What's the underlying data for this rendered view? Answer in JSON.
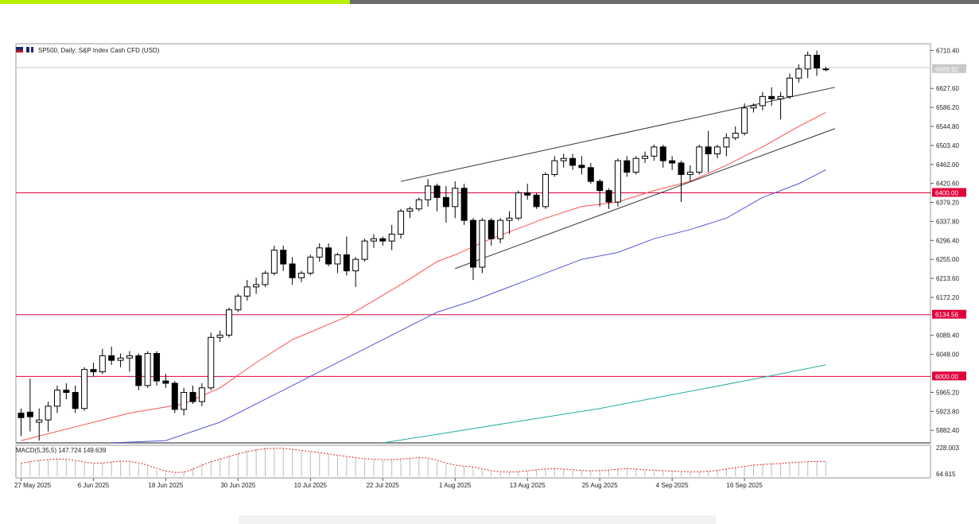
{
  "header": {
    "title": "SP500, Daily:  S&P Index Cash CFD (USD)"
  },
  "macd": {
    "label": "MACD(5,35,5) 147.724 149.639",
    "top_value": "228.003",
    "bottom_value": "64.615"
  },
  "colors": {
    "up_candle_fill": "#ffffff",
    "down_candle_fill": "#000000",
    "ma_fast": "#ff5050",
    "ma_mid": "#5555dd",
    "ma_slow": "#20b0a0",
    "hline": "#e0003a",
    "macd_signal": "#e02020"
  },
  "chart_data": {
    "type": "candlestick",
    "title": "SP500, Daily:  S&P Index Cash CFD (USD)",
    "y_axis_ticks": [
      "6710.40",
      "6627.60",
      "6586.20",
      "6544.80",
      "6503.40",
      "6462.00",
      "6420.60",
      "6379.20",
      "6337.80",
      "6296.40",
      "6255.00",
      "6213.60",
      "6172.20",
      "6089.40",
      "6048.00",
      "5965.20",
      "5923.80",
      "5882.40"
    ],
    "ylim": [
      5855,
      6725
    ],
    "x_axis_labels": [
      {
        "label": "27 May 2025",
        "index": 0
      },
      {
        "label": "6 Jun 2025",
        "index": 8
      },
      {
        "label": "18 Jun 2025",
        "index": 16
      },
      {
        "label": "30 Jun 2025",
        "index": 24
      },
      {
        "label": "10 Jul 2025",
        "index": 32
      },
      {
        "label": "22 Jul 2025",
        "index": 40
      },
      {
        "label": "1 Aug 2025",
        "index": 48
      },
      {
        "label": "13 Aug 2025",
        "index": 56
      },
      {
        "label": "25 Aug 2025",
        "index": 64
      },
      {
        "label": "4 Sep 2025",
        "index": 72
      },
      {
        "label": "16 Sep 2025",
        "index": 80
      }
    ],
    "price_labels": [
      {
        "value": 6669.92,
        "text": "6669.92",
        "style": "current"
      },
      {
        "value": 6400.0,
        "text": "6400.00",
        "style": "level"
      },
      {
        "value": 6134.56,
        "text": "6134.56",
        "style": "level"
      },
      {
        "value": 6000.0,
        "text": "6000.00",
        "style": "level"
      }
    ],
    "horizontal_levels": [
      6400.0,
      6134.56,
      6000.0
    ],
    "candles": [
      {
        "o": 5920,
        "h": 5930,
        "l": 5870,
        "c": 5910
      },
      {
        "o": 5922,
        "h": 5995,
        "l": 5880,
        "c": 5912
      },
      {
        "o": 5900,
        "h": 5930,
        "l": 5860,
        "c": 5905
      },
      {
        "o": 5905,
        "h": 5945,
        "l": 5880,
        "c": 5935
      },
      {
        "o": 5935,
        "h": 5980,
        "l": 5920,
        "c": 5970
      },
      {
        "o": 5970,
        "h": 5985,
        "l": 5950,
        "c": 5965
      },
      {
        "o": 5965,
        "h": 5980,
        "l": 5920,
        "c": 5930
      },
      {
        "o": 5930,
        "h": 6020,
        "l": 5925,
        "c": 6015
      },
      {
        "o": 6015,
        "h": 6030,
        "l": 6000,
        "c": 6010
      },
      {
        "o": 6010,
        "h": 6060,
        "l": 6005,
        "c": 6045
      },
      {
        "o": 6045,
        "h": 6065,
        "l": 6025,
        "c": 6035
      },
      {
        "o": 6035,
        "h": 6050,
        "l": 6020,
        "c": 6040
      },
      {
        "o": 6040,
        "h": 6055,
        "l": 6010,
        "c": 6045
      },
      {
        "o": 6045,
        "h": 6050,
        "l": 5970,
        "c": 5980
      },
      {
        "o": 5980,
        "h": 6055,
        "l": 5975,
        "c": 6050
      },
      {
        "o": 6050,
        "h": 6055,
        "l": 5980,
        "c": 5990
      },
      {
        "o": 5990,
        "h": 6005,
        "l": 5975,
        "c": 5985
      },
      {
        "o": 5985,
        "h": 5990,
        "l": 5920,
        "c": 5928
      },
      {
        "o": 5928,
        "h": 5975,
        "l": 5915,
        "c": 5965
      },
      {
        "o": 5965,
        "h": 5980,
        "l": 5940,
        "c": 5945
      },
      {
        "o": 5945,
        "h": 5985,
        "l": 5935,
        "c": 5975
      },
      {
        "o": 5975,
        "h": 6095,
        "l": 5970,
        "c": 6085
      },
      {
        "o": 6085,
        "h": 6100,
        "l": 6075,
        "c": 6090
      },
      {
        "o": 6090,
        "h": 6150,
        "l": 6085,
        "c": 6145
      },
      {
        "o": 6145,
        "h": 6180,
        "l": 6140,
        "c": 6175
      },
      {
        "o": 6175,
        "h": 6210,
        "l": 6165,
        "c": 6195
      },
      {
        "o": 6195,
        "h": 6215,
        "l": 6180,
        "c": 6200
      },
      {
        "o": 6200,
        "h": 6230,
        "l": 6195,
        "c": 6225
      },
      {
        "o": 6225,
        "h": 6285,
        "l": 6220,
        "c": 6275
      },
      {
        "o": 6275,
        "h": 6285,
        "l": 6230,
        "c": 6245
      },
      {
        "o": 6245,
        "h": 6260,
        "l": 6200,
        "c": 6215
      },
      {
        "o": 6215,
        "h": 6230,
        "l": 6205,
        "c": 6225
      },
      {
        "o": 6225,
        "h": 6265,
        "l": 6220,
        "c": 6260
      },
      {
        "o": 6260,
        "h": 6290,
        "l": 6250,
        "c": 6280
      },
      {
        "o": 6280,
        "h": 6290,
        "l": 6240,
        "c": 6245
      },
      {
        "o": 6245,
        "h": 6270,
        "l": 6225,
        "c": 6265
      },
      {
        "o": 6265,
        "h": 6305,
        "l": 6220,
        "c": 6230
      },
      {
        "o": 6230,
        "h": 6260,
        "l": 6195,
        "c": 6255
      },
      {
        "o": 6255,
        "h": 6300,
        "l": 6250,
        "c": 6295
      },
      {
        "o": 6295,
        "h": 6310,
        "l": 6280,
        "c": 6300
      },
      {
        "o": 6300,
        "h": 6305,
        "l": 6285,
        "c": 6295
      },
      {
        "o": 6295,
        "h": 6330,
        "l": 6275,
        "c": 6310
      },
      {
        "o": 6310,
        "h": 6365,
        "l": 6300,
        "c": 6360
      },
      {
        "o": 6360,
        "h": 6370,
        "l": 6345,
        "c": 6365
      },
      {
        "o": 6365,
        "h": 6390,
        "l": 6360,
        "c": 6385
      },
      {
        "o": 6385,
        "h": 6430,
        "l": 6370,
        "c": 6415
      },
      {
        "o": 6415,
        "h": 6420,
        "l": 6360,
        "c": 6390
      },
      {
        "o": 6390,
        "h": 6415,
        "l": 6335,
        "c": 6370
      },
      {
        "o": 6370,
        "h": 6425,
        "l": 6345,
        "c": 6410
      },
      {
        "o": 6410,
        "h": 6420,
        "l": 6330,
        "c": 6340
      },
      {
        "o": 6340,
        "h": 6345,
        "l": 6210,
        "c": 6238
      },
      {
        "o": 6238,
        "h": 6345,
        "l": 6225,
        "c": 6340
      },
      {
        "o": 6340,
        "h": 6345,
        "l": 6285,
        "c": 6300
      },
      {
        "o": 6300,
        "h": 6345,
        "l": 6290,
        "c": 6340
      },
      {
        "o": 6340,
        "h": 6360,
        "l": 6310,
        "c": 6345
      },
      {
        "o": 6345,
        "h": 6405,
        "l": 6340,
        "c": 6400
      },
      {
        "o": 6400,
        "h": 6420,
        "l": 6385,
        "c": 6395
      },
      {
        "o": 6395,
        "h": 6400,
        "l": 6365,
        "c": 6370
      },
      {
        "o": 6370,
        "h": 6445,
        "l": 6365,
        "c": 6440
      },
      {
        "o": 6440,
        "h": 6480,
        "l": 6435,
        "c": 6470
      },
      {
        "o": 6470,
        "h": 6485,
        "l": 6455,
        "c": 6475
      },
      {
        "o": 6475,
        "h": 6485,
        "l": 6450,
        "c": 6460
      },
      {
        "o": 6460,
        "h": 6480,
        "l": 6440,
        "c": 6455
      },
      {
        "o": 6455,
        "h": 6465,
        "l": 6420,
        "c": 6425
      },
      {
        "o": 6425,
        "h": 6430,
        "l": 6370,
        "c": 6405
      },
      {
        "o": 6405,
        "h": 6410,
        "l": 6365,
        "c": 6380
      },
      {
        "o": 6380,
        "h": 6475,
        "l": 6370,
        "c": 6470
      },
      {
        "o": 6470,
        "h": 6480,
        "l": 6435,
        "c": 6445
      },
      {
        "o": 6445,
        "h": 6480,
        "l": 6440,
        "c": 6475
      },
      {
        "o": 6475,
        "h": 6490,
        "l": 6465,
        "c": 6480
      },
      {
        "o": 6480,
        "h": 6505,
        "l": 6470,
        "c": 6500
      },
      {
        "o": 6500,
        "h": 6505,
        "l": 6455,
        "c": 6470
      },
      {
        "o": 6470,
        "h": 6480,
        "l": 6450,
        "c": 6465
      },
      {
        "o": 6465,
        "h": 6470,
        "l": 6380,
        "c": 6440
      },
      {
        "o": 6440,
        "h": 6460,
        "l": 6425,
        "c": 6445
      },
      {
        "o": 6445,
        "h": 6505,
        "l": 6440,
        "c": 6500
      },
      {
        "o": 6500,
        "h": 6535,
        "l": 6445,
        "c": 6485
      },
      {
        "o": 6485,
        "h": 6505,
        "l": 6475,
        "c": 6500
      },
      {
        "o": 6500,
        "h": 6530,
        "l": 6480,
        "c": 6520
      },
      {
        "o": 6520,
        "h": 6545,
        "l": 6515,
        "c": 6530
      },
      {
        "o": 6530,
        "h": 6595,
        "l": 6525,
        "c": 6585
      },
      {
        "o": 6585,
        "h": 6595,
        "l": 6575,
        "c": 6590
      },
      {
        "o": 6590,
        "h": 6620,
        "l": 6580,
        "c": 6610
      },
      {
        "o": 6610,
        "h": 6630,
        "l": 6590,
        "c": 6605
      },
      {
        "o": 6605,
        "h": 6620,
        "l": 6560,
        "c": 6610
      },
      {
        "o": 6610,
        "h": 6660,
        "l": 6605,
        "c": 6650
      },
      {
        "o": 6650,
        "h": 6680,
        "l": 6640,
        "c": 6670
      },
      {
        "o": 6670,
        "h": 6708,
        "l": 6650,
        "c": 6700
      },
      {
        "o": 6700,
        "h": 6710,
        "l": 6655,
        "c": 6672
      },
      {
        "o": 6670,
        "h": 6675,
        "l": 6665,
        "c": 6670
      }
    ],
    "ma_fast": {
      "name": "",
      "points": [
        [
          0,
          5860
        ],
        [
          6,
          5890
        ],
        [
          12,
          5920
        ],
        [
          18,
          5940
        ],
        [
          22,
          5975
        ],
        [
          26,
          6030
        ],
        [
          30,
          6080
        ],
        [
          36,
          6130
        ],
        [
          42,
          6200
        ],
        [
          46,
          6250
        ],
        [
          48,
          6265
        ],
        [
          52,
          6300
        ],
        [
          58,
          6345
        ],
        [
          62,
          6370
        ],
        [
          66,
          6380
        ],
        [
          70,
          6405
        ],
        [
          74,
          6425
        ],
        [
          78,
          6460
        ],
        [
          82,
          6500
        ],
        [
          86,
          6545
        ],
        [
          89,
          6575
        ]
      ]
    },
    "ma_mid": {
      "name": "",
      "points": [
        [
          10,
          5855
        ],
        [
          16,
          5860
        ],
        [
          22,
          5900
        ],
        [
          28,
          5960
        ],
        [
          34,
          6020
        ],
        [
          40,
          6080
        ],
        [
          46,
          6140
        ],
        [
          50,
          6165
        ],
        [
          56,
          6210
        ],
        [
          62,
          6255
        ],
        [
          66,
          6270
        ],
        [
          70,
          6300
        ],
        [
          74,
          6320
        ],
        [
          78,
          6345
        ],
        [
          82,
          6390
        ],
        [
          86,
          6420
        ],
        [
          89,
          6450
        ]
      ]
    },
    "ma_slow": {
      "name": "",
      "points": [
        [
          40,
          5855
        ],
        [
          48,
          5880
        ],
        [
          56,
          5905
        ],
        [
          64,
          5930
        ],
        [
          72,
          5960
        ],
        [
          80,
          5990
        ],
        [
          89,
          6025
        ]
      ]
    },
    "trendlines": [
      {
        "from": [
          42,
          6425
        ],
        "to": [
          90,
          6630
        ]
      },
      {
        "from": [
          48,
          6235
        ],
        "to": [
          90,
          6540
        ]
      }
    ],
    "macd": {
      "histogram": [
        140,
        150,
        158,
        162,
        165,
        160,
        150,
        140,
        138,
        142,
        150,
        155,
        150,
        135,
        120,
        100,
        85,
        80,
        90,
        115,
        140,
        155,
        170,
        185,
        200,
        212,
        220,
        228,
        228,
        225,
        218,
        210,
        205,
        198,
        190,
        182,
        175,
        168,
        162,
        160,
        158,
        160,
        165,
        170,
        175,
        168,
        150,
        130,
        120,
        118,
        115,
        100,
        90,
        85,
        88,
        92,
        98,
        105,
        108,
        110,
        106,
        100,
        96,
        95,
        98,
        102,
        108,
        110,
        106,
        100,
        98,
        96,
        92,
        90,
        88,
        90,
        95,
        100,
        110,
        118,
        125,
        132,
        135,
        138,
        140,
        145,
        148,
        150,
        152,
        150
      ],
      "signal": [
        140,
        148,
        155,
        160,
        163,
        162,
        155,
        146,
        140,
        140,
        146,
        151,
        150,
        141,
        128,
        110,
        95,
        86,
        88,
        105,
        128,
        147,
        162,
        177,
        192,
        205,
        215,
        222,
        225,
        224,
        219,
        212,
        206,
        200,
        192,
        185,
        178,
        171,
        165,
        162,
        160,
        160,
        163,
        167,
        171,
        169,
        157,
        140,
        128,
        122,
        118,
        107,
        97,
        90,
        89,
        91,
        96,
        102,
        106,
        108,
        106,
        102,
        98,
        96,
        97,
        100,
        105,
        108,
        106,
        102,
        99,
        97,
        94,
        92,
        90,
        90,
        93,
        98,
        106,
        114,
        121,
        128,
        132,
        135,
        138,
        142,
        145,
        148,
        150,
        149
      ]
    }
  }
}
